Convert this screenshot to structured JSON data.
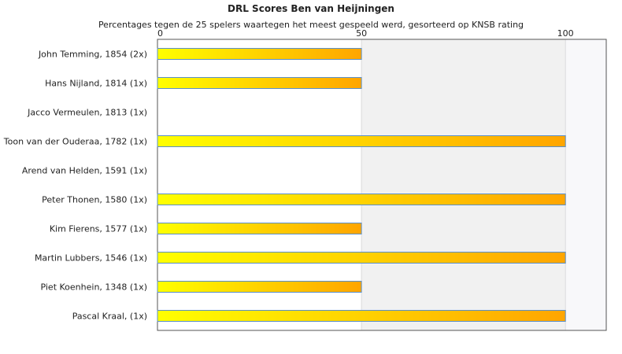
{
  "chart_data": {
    "type": "bar",
    "orientation": "horizontal",
    "title": "DRL Scores Ben van Heijningen",
    "subtitle": "Percentages tegen de 25 spelers waartegen het meest gespeeld werd, gesorteerd op KNSB rating",
    "categories": [
      "John Temming, 1854 (2x)",
      "Hans Nijland, 1814 (1x)",
      "Jacco Vermeulen, 1813 (1x)",
      "Toon van der Ouderaa, 1782 (1x)",
      "Arend van Helden, 1591 (1x)",
      "Peter Thonen, 1580 (1x)",
      "Kim Fierens, 1577 (1x)",
      "Martin Lubbers, 1546 (1x)",
      "Piet Koenhein, 1348 (1x)",
      "Pascal Kraal,  (1x)"
    ],
    "values": [
      50,
      50,
      0,
      100,
      0,
      100,
      50,
      100,
      50,
      100
    ],
    "xlim": [
      0,
      110
    ],
    "xticks": [
      0,
      50,
      100
    ],
    "x_axis_position": "top",
    "grid": true,
    "colors": {
      "bar_start": "#ffff00",
      "bar_end": "#ffa500",
      "bar_border": "#5a8fc8",
      "band_1": "#ffffff",
      "band_2": "#f1f1f1",
      "band_3": "#f8f8fa"
    }
  }
}
